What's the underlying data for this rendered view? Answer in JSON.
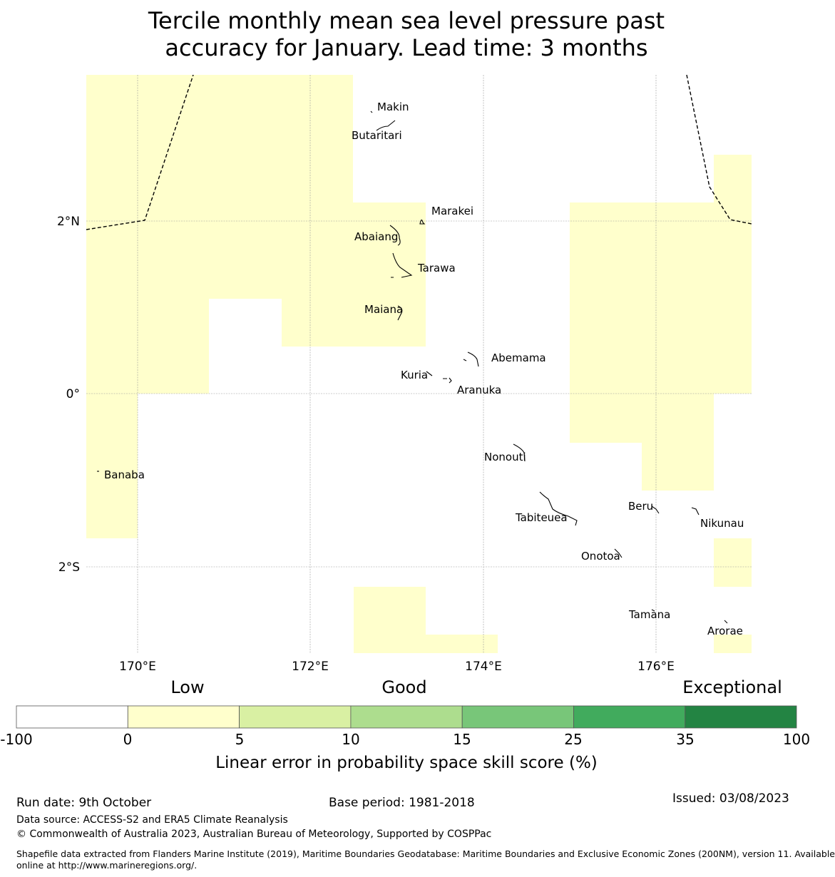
{
  "title": {
    "line1": "Tercile monthly mean sea level pressure past",
    "line2": "accuracy for January. Lead time: 3 months"
  },
  "map": {
    "lon_ticks": [
      "170°E",
      "172°E",
      "174°E",
      "176°E"
    ],
    "lat_ticks": [
      "2°N",
      "0°",
      "2°S"
    ],
    "places": [
      "Makin",
      "Butaritari",
      "Marakei",
      "Abaiang",
      "Tarawa",
      "Maiana",
      "Abemama",
      "Kuria",
      "Aranuka",
      "Banaba",
      "Nonouti",
      "Beru",
      "Tabiteuea",
      "Nikunau",
      "Onotoa",
      "Tamana",
      "Arorae"
    ],
    "skill_fill_color": "#ffffcc",
    "skill_fill_category": "0 to 5"
  },
  "colorbar": {
    "categories": [
      "Low",
      "Good",
      "Exceptional"
    ],
    "ticks": [
      "-100",
      "0",
      "5",
      "10",
      "15",
      "25",
      "35",
      "100"
    ],
    "colors": [
      "#ffffff",
      "#ffffcc",
      "#d9f0a3",
      "#addd8e",
      "#78c679",
      "#41ab5d",
      "#238443"
    ],
    "label": "Linear error in probability space skill score (%)"
  },
  "footer": {
    "run_date": "Run date: 9th October",
    "base_period": "Base period: 1981-2018",
    "issued": "Issued: 03/08/2023",
    "data_source": "Data source: ACCESS-S2 and ERA5 Climate Reanalysis",
    "copyright": "© Commonwealth of Australia 2023, Australian Bureau of Meteorology, Supported by COSPPac",
    "shapefile_line1": "Shapefile data extracted from Flanders Marine Institute (2019), Maritime Boundaries Geodatabase: Maritime Boundaries and Exclusive Economic Zones (200NM), version 11. Available",
    "shapefile_line2": "online at http://www.marineregions.org/."
  }
}
